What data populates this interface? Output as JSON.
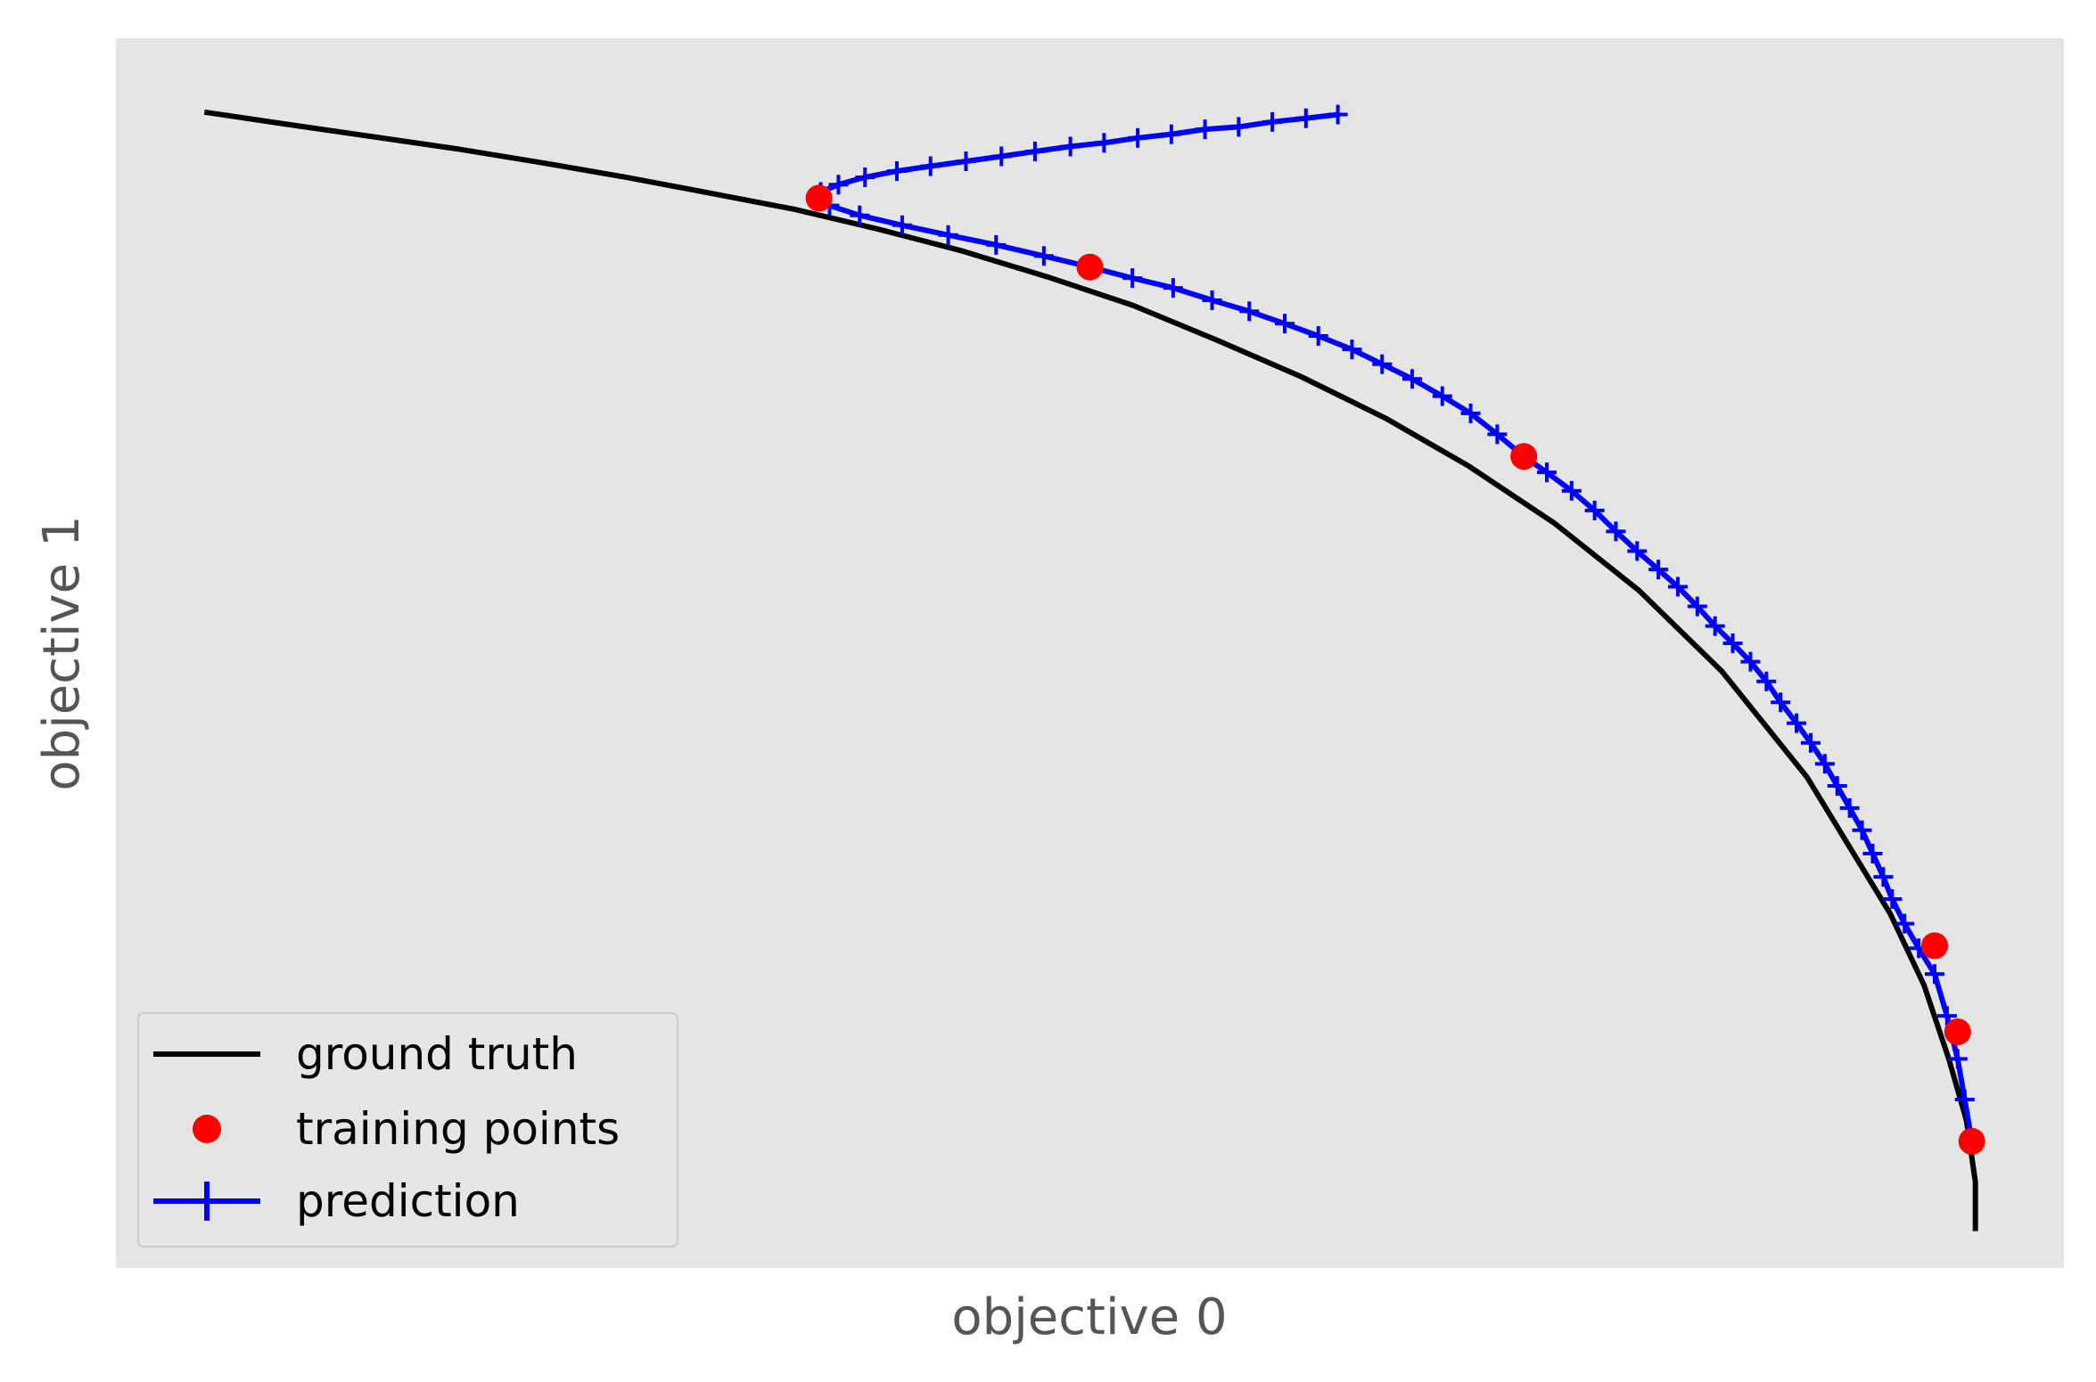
{
  "chart_data": {
    "type": "line",
    "title": "",
    "xlabel": "objective 0",
    "ylabel": "objective 1",
    "xlim": [
      -0.05,
      1.05
    ],
    "ylim": [
      -0.03,
      0.97
    ],
    "grid": false,
    "ticks_visible": false,
    "legend_position": "lower-left",
    "legend": [
      {
        "label": "ground truth",
        "kind": "line",
        "color": "#000000"
      },
      {
        "label": "training points",
        "kind": "marker",
        "color": "#ff0000"
      },
      {
        "label": "prediction",
        "kind": "line-plus",
        "color": "#0000ff"
      }
    ],
    "series": [
      {
        "name": "ground truth",
        "kind": "line",
        "color": "#000000",
        "points": [
          [
            0.0,
            0.91
          ],
          [
            0.047,
            0.9
          ],
          [
            0.095,
            0.89
          ],
          [
            0.143,
            0.88
          ],
          [
            0.19,
            0.869
          ],
          [
            0.238,
            0.857
          ],
          [
            0.286,
            0.844
          ],
          [
            0.333,
            0.831
          ],
          [
            0.38,
            0.815
          ],
          [
            0.428,
            0.797
          ],
          [
            0.476,
            0.776
          ],
          [
            0.524,
            0.753
          ],
          [
            0.571,
            0.725
          ],
          [
            0.619,
            0.695
          ],
          [
            0.667,
            0.661
          ],
          [
            0.714,
            0.622
          ],
          [
            0.762,
            0.576
          ],
          [
            0.81,
            0.521
          ],
          [
            0.857,
            0.455
          ],
          [
            0.905,
            0.369
          ],
          [
            0.952,
            0.258
          ],
          [
            0.971,
            0.2
          ],
          [
            0.985,
            0.14
          ],
          [
            0.995,
            0.09
          ],
          [
            1.0,
            0.04
          ],
          [
            1.0,
            0.0
          ]
        ]
      },
      {
        "name": "training points",
        "kind": "scatter",
        "color": "#ff0000",
        "points": [
          [
            0.347,
            0.84
          ],
          [
            0.5,
            0.784
          ],
          [
            0.745,
            0.63
          ],
          [
            0.977,
            0.232
          ],
          [
            0.99,
            0.162
          ],
          [
            0.998,
            0.073
          ]
        ]
      },
      {
        "name": "prediction",
        "kind": "line-plus",
        "color": "#0000ff",
        "points": [
          [
            0.64,
            0.908
          ],
          [
            0.622,
            0.905
          ],
          [
            0.603,
            0.902
          ],
          [
            0.584,
            0.898
          ],
          [
            0.565,
            0.896
          ],
          [
            0.546,
            0.892
          ],
          [
            0.527,
            0.889
          ],
          [
            0.508,
            0.885
          ],
          [
            0.489,
            0.882
          ],
          [
            0.469,
            0.878
          ],
          [
            0.45,
            0.874
          ],
          [
            0.43,
            0.87
          ],
          [
            0.41,
            0.866
          ],
          [
            0.391,
            0.862
          ],
          [
            0.373,
            0.857
          ],
          [
            0.358,
            0.851
          ],
          [
            0.348,
            0.845
          ],
          [
            0.347,
            0.84
          ],
          [
            0.353,
            0.834
          ],
          [
            0.37,
            0.826
          ],
          [
            0.394,
            0.818
          ],
          [
            0.42,
            0.81
          ],
          [
            0.447,
            0.802
          ],
          [
            0.474,
            0.793
          ],
          [
            0.5,
            0.784
          ],
          [
            0.524,
            0.775
          ],
          [
            0.547,
            0.767
          ],
          [
            0.569,
            0.757
          ],
          [
            0.59,
            0.748
          ],
          [
            0.61,
            0.738
          ],
          [
            0.629,
            0.728
          ],
          [
            0.648,
            0.717
          ],
          [
            0.665,
            0.705
          ],
          [
            0.682,
            0.693
          ],
          [
            0.699,
            0.679
          ],
          [
            0.715,
            0.665
          ],
          [
            0.73,
            0.648
          ],
          [
            0.745,
            0.63
          ],
          [
            0.758,
            0.617
          ],
          [
            0.772,
            0.602
          ],
          [
            0.785,
            0.586
          ],
          [
            0.797,
            0.569
          ],
          [
            0.809,
            0.553
          ],
          [
            0.821,
            0.538
          ],
          [
            0.832,
            0.524
          ],
          [
            0.843,
            0.508
          ],
          [
            0.853,
            0.492
          ],
          [
            0.863,
            0.478
          ],
          [
            0.873,
            0.463
          ],
          [
            0.882,
            0.447
          ],
          [
            0.89,
            0.43
          ],
          [
            0.899,
            0.413
          ],
          [
            0.907,
            0.397
          ],
          [
            0.915,
            0.38
          ],
          [
            0.922,
            0.362
          ],
          [
            0.929,
            0.344
          ],
          [
            0.936,
            0.326
          ],
          [
            0.942,
            0.307
          ],
          [
            0.948,
            0.288
          ],
          [
            0.953,
            0.27
          ],
          [
            0.96,
            0.25
          ],
          [
            0.968,
            0.23
          ],
          [
            0.977,
            0.209
          ],
          [
            0.984,
            0.175
          ],
          [
            0.99,
            0.14
          ],
          [
            0.994,
            0.107
          ],
          [
            0.998,
            0.073
          ]
        ]
      }
    ]
  }
}
